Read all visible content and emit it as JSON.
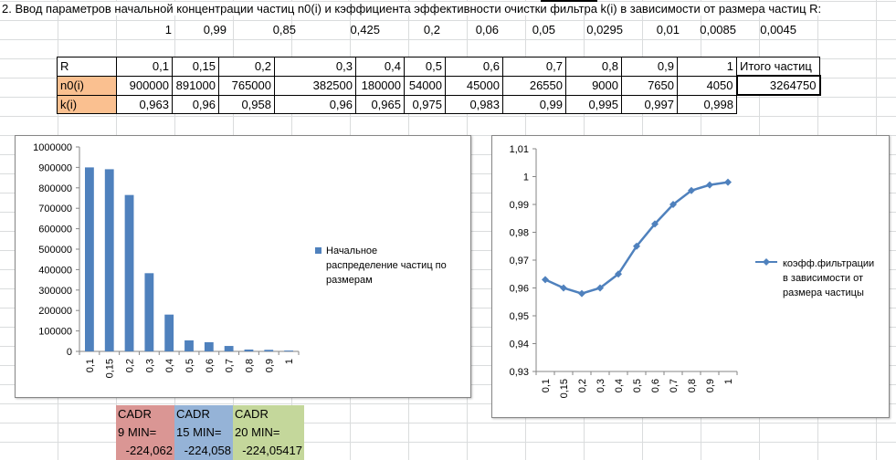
{
  "heading": "2. Ввод параметров начальной концентрации частиц n0(i) и кэффициента эффективности очистки фильтра k(i) в зависимости от размера частиц R:",
  "row1_values": [
    "1",
    "0,99",
    "0,85",
    "0,425",
    "0,2",
    "0,06",
    "0,05",
    "0,0295",
    "0,01",
    "0,0085",
    "0,0045"
  ],
  "table": {
    "r_label": "R",
    "n_label": "n0(i)",
    "k_label": "k(i)",
    "r_values": [
      "0,1",
      "0,15",
      "0,2",
      "0,3",
      "0,4",
      "0,5",
      "0,6",
      "0,7",
      "0,8",
      "0,9",
      "1"
    ],
    "n_values": [
      "900000",
      "891000",
      "765000",
      "382500",
      "180000",
      "54000",
      "45000",
      "26550",
      "9000",
      "7650",
      "4050"
    ],
    "k_values": [
      "0,963",
      "0,96",
      "0,958",
      "0,96",
      "0,965",
      "0,975",
      "0,983",
      "0,99",
      "0,995",
      "0,997",
      "0,998"
    ],
    "total_label": "Итого частиц",
    "total_value": "3264750"
  },
  "cadr": [
    {
      "l1": "CADR",
      "l2": "9 MIN=",
      "value": "-224,062",
      "color": "#da9694"
    },
    {
      "l1": "CADR",
      "l2": "15 MIN=",
      "value": "-224,058",
      "color": "#95b3d7"
    },
    {
      "l1": "CADR",
      "l2": "20 MIN=",
      "value": "-224,05417",
      "color": "#c4d79b"
    }
  ],
  "chart_data": [
    {
      "type": "bar",
      "categories": [
        "0,1",
        "0,15",
        "0,2",
        "0,3",
        "0,4",
        "0,5",
        "0,6",
        "0,7",
        "0,8",
        "0,9",
        "1"
      ],
      "series": [
        {
          "name": "Начальное распределение частиц по размерам",
          "values": [
            900000,
            891000,
            765000,
            382500,
            180000,
            54000,
            45000,
            26550,
            9000,
            7650,
            4050
          ]
        }
      ],
      "y_ticks": [
        "0",
        "100000",
        "200000",
        "300000",
        "400000",
        "500000",
        "600000",
        "700000",
        "800000",
        "900000",
        "1000000"
      ],
      "ylim": [
        0,
        1000000
      ],
      "legend_lines": [
        "Начальное",
        "распределение частиц по",
        "размерам"
      ],
      "legend_position": "right",
      "color": "#4f81bd"
    },
    {
      "type": "line",
      "categories": [
        "0,1",
        "0,15",
        "0,2",
        "0,3",
        "0,4",
        "0,5",
        "0,6",
        "0,7",
        "0,8",
        "0,9",
        "1"
      ],
      "series": [
        {
          "name": "коэфф.фильтрации в зависимости от размера частицы",
          "values": [
            0.963,
            0.96,
            0.958,
            0.96,
            0.965,
            0.975,
            0.983,
            0.99,
            0.995,
            0.997,
            0.998
          ]
        }
      ],
      "y_ticks": [
        "0,93",
        "0,94",
        "0,95",
        "0,96",
        "0,97",
        "0,98",
        "0,99",
        "1",
        "1,01"
      ],
      "ylim": [
        0.93,
        1.01
      ],
      "legend_lines": [
        "коэфф.фильтрации",
        "в зависимости от",
        "размера частицы"
      ],
      "legend_position": "right",
      "color": "#4f81bd"
    }
  ]
}
